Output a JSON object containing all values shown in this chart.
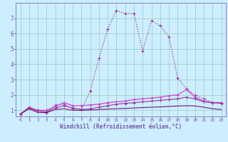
{
  "bg_color": "#cceeff",
  "grid_color": "#99ccbb",
  "spine_color": "#7755aa",
  "xlim": [
    -0.5,
    23.5
  ],
  "ylim": [
    0.6,
    8.0
  ],
  "yticks": [
    1,
    2,
    3,
    4,
    5,
    6,
    7
  ],
  "xticks": [
    0,
    1,
    2,
    3,
    4,
    5,
    6,
    7,
    8,
    9,
    10,
    11,
    12,
    13,
    14,
    15,
    16,
    17,
    18,
    19,
    20,
    21,
    22,
    23
  ],
  "xlabel": "Windchill (Refroidissement éolien,°C)",
  "series": [
    {
      "x": [
        0,
        1,
        2,
        3,
        4,
        5,
        6,
        7,
        8,
        9,
        10,
        11,
        12,
        13,
        14,
        15,
        16,
        17,
        18,
        19,
        20,
        21,
        22,
        23
      ],
      "y": [
        0.75,
        1.2,
        1.0,
        0.85,
        1.35,
        1.4,
        1.1,
        1.05,
        2.25,
        4.4,
        6.3,
        7.5,
        7.3,
        7.3,
        4.85,
        6.85,
        6.5,
        5.8,
        3.1,
        2.4,
        2.0,
        1.75,
        1.5,
        1.5
      ],
      "marker": "+",
      "color": "#993399",
      "linewidth": 0.9,
      "markersize": 3.5,
      "linestyle": ":"
    },
    {
      "x": [
        0,
        1,
        2,
        3,
        4,
        5,
        6,
        7,
        8,
        9,
        10,
        11,
        12,
        13,
        14,
        15,
        16,
        17,
        18,
        19,
        20,
        21,
        22,
        23
      ],
      "y": [
        0.75,
        1.2,
        1.0,
        1.0,
        1.25,
        1.5,
        1.3,
        1.3,
        1.35,
        1.4,
        1.5,
        1.55,
        1.6,
        1.7,
        1.75,
        1.8,
        1.85,
        1.95,
        2.0,
        2.35,
        1.85,
        1.6,
        1.5,
        1.5
      ],
      "marker": "+",
      "color": "#cc44cc",
      "linewidth": 0.9,
      "markersize": 3.5,
      "linestyle": "-"
    },
    {
      "x": [
        0,
        1,
        2,
        3,
        4,
        5,
        6,
        7,
        8,
        9,
        10,
        11,
        12,
        13,
        14,
        15,
        16,
        17,
        18,
        19,
        20,
        21,
        22,
        23
      ],
      "y": [
        0.75,
        1.15,
        0.95,
        0.9,
        1.15,
        1.3,
        1.15,
        1.05,
        1.1,
        1.2,
        1.3,
        1.4,
        1.45,
        1.5,
        1.55,
        1.6,
        1.65,
        1.7,
        1.75,
        1.85,
        1.75,
        1.55,
        1.5,
        1.45
      ],
      "marker": "+",
      "color": "#993399",
      "linewidth": 0.8,
      "markersize": 3.0,
      "linestyle": "-"
    },
    {
      "x": [
        0,
        1,
        2,
        3,
        4,
        5,
        6,
        7,
        8,
        9,
        10,
        11,
        12,
        13,
        14,
        15,
        16,
        17,
        18,
        19,
        20,
        21,
        22,
        23
      ],
      "y": [
        0.75,
        1.1,
        0.85,
        0.85,
        1.05,
        1.1,
        1.0,
        1.0,
        1.02,
        1.05,
        1.08,
        1.1,
        1.12,
        1.15,
        1.18,
        1.2,
        1.22,
        1.25,
        1.28,
        1.3,
        1.28,
        1.2,
        1.1,
        1.05
      ],
      "marker": null,
      "color": "#771177",
      "linewidth": 0.8,
      "markersize": 0,
      "linestyle": "-"
    }
  ]
}
